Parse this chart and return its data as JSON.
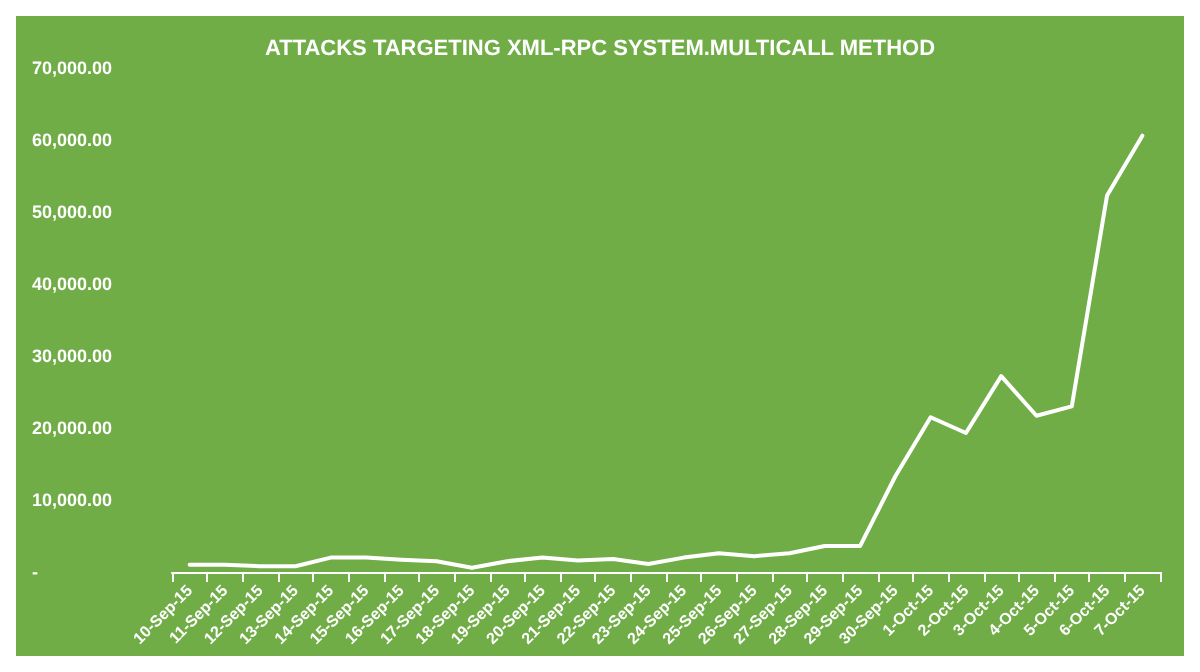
{
  "chart_data": {
    "type": "line",
    "title": "ATTACKS TARGETING XML-RPC SYSTEM.MULTICALL METHOD",
    "categories": [
      "10-Sep-15",
      "11-Sep-15",
      "12-Sep-15",
      "13-Sep-15",
      "14-Sep-15",
      "15-Sep-15",
      "16-Sep-15",
      "17-Sep-15",
      "18-Sep-15",
      "19-Sep-15",
      "20-Sep-15",
      "21-Sep-15",
      "22-Sep-15",
      "23-Sep-15",
      "24-Sep-15",
      "25-Sep-15",
      "26-Sep-15",
      "27-Sep-15",
      "28-Sep-15",
      "29-Sep-15",
      "30-Sep-15",
      "1-Oct-15",
      "2-Oct-15",
      "3-Oct-15",
      "4-Oct-15",
      "5-Oct-15",
      "6-Oct-15",
      "7-Oct-15"
    ],
    "series": [
      {
        "color": "#ffffff",
        "values": [
          1000,
          1000,
          800,
          800,
          2000,
          2000,
          1700,
          1500,
          600,
          1500,
          2000,
          1600,
          1800,
          1100,
          2000,
          2600,
          2200,
          2600,
          3600,
          3600,
          13300,
          21500,
          19300,
          27200,
          21700,
          23000,
          52300,
          60600
        ]
      }
    ],
    "ylim": [
      0,
      70000
    ],
    "yticks": [
      {
        "value": 0,
        "label": "-"
      },
      {
        "value": 10000,
        "label": "10,000.00"
      },
      {
        "value": 20000,
        "label": "20,000.00"
      },
      {
        "value": 30000,
        "label": "30,000.00"
      },
      {
        "value": 40000,
        "label": "40,000.00"
      },
      {
        "value": 50000,
        "label": "50,000.00"
      },
      {
        "value": 60000,
        "label": "60,000.00"
      },
      {
        "value": 70000,
        "label": "70,000.00"
      }
    ],
    "grid": false,
    "marker": "none",
    "line_style": "solid"
  }
}
